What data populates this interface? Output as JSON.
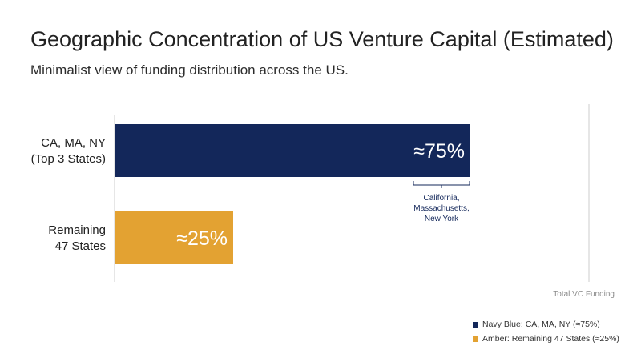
{
  "title": "Geographic Concentration of US Venture Capital (Estimated)",
  "subtitle": "Minimalist view of funding distribution across the US.",
  "colors": {
    "navy": "#13275a",
    "amber": "#e3a232",
    "axis": "#cccccc"
  },
  "chart_data": {
    "type": "bar",
    "orientation": "horizontal",
    "categories": [
      [
        "CA, MA, NY",
        "(Top 3 States)"
      ],
      [
        "Remaining",
        "47 States"
      ]
    ],
    "values": [
      75,
      25
    ],
    "data_labels": [
      "≈75%",
      "≈25%"
    ],
    "xlim": [
      0,
      100
    ],
    "reference_line_label": "Total VC Funding",
    "annotation": [
      "California,",
      "Massachusetts,",
      "New York"
    ],
    "grid": false,
    "legend_position": "bottom-right",
    "legend": [
      {
        "label": "Navy Blue: CA, MA, NY (≈75%)",
        "color": "#13275a"
      },
      {
        "label": "Amber: Remaining 47 States (≈25%)",
        "color": "#e3a232"
      }
    ]
  }
}
